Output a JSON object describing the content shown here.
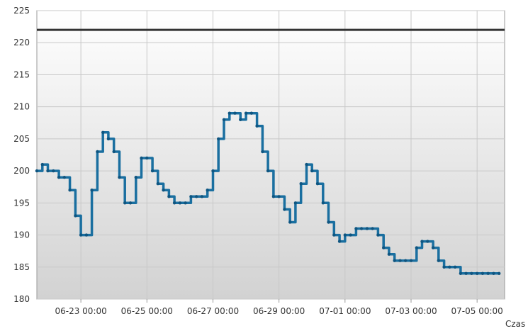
{
  "chart_data": {
    "type": "line",
    "xlabel": "Czas",
    "ylabel": "",
    "title": "",
    "ylim": [
      180,
      225
    ],
    "yticks": [
      180,
      185,
      190,
      195,
      200,
      205,
      210,
      215,
      220,
      225
    ],
    "xlim": [
      "2024-06-21 16:00",
      "2024-07-05 20:00"
    ],
    "xticks": [
      "06-23 00:00",
      "06-25 00:00",
      "06-27 00:00",
      "06-29 00:00",
      "07-01 00:00",
      "07-03 00:00",
      "07-05 00:00"
    ],
    "grid": true,
    "reference_line": 222,
    "colors": {
      "series": "#1a6fa0",
      "reference": "#333333",
      "grid": "#c8c8c8",
      "bg_top": "#ffffff",
      "bg_bottom": "#d2d2d2"
    },
    "series": [
      {
        "x": [
          "2024-06-21 16:00",
          "2024-06-21 20:00",
          "2024-06-22 00:00",
          "2024-06-22 04:00",
          "2024-06-22 08:00",
          "2024-06-22 12:00",
          "2024-06-22 16:00",
          "2024-06-22 20:00",
          "2024-06-23 00:00",
          "2024-06-23 04:00",
          "2024-06-23 08:00",
          "2024-06-23 12:00",
          "2024-06-23 16:00",
          "2024-06-23 20:00",
          "2024-06-24 00:00",
          "2024-06-24 04:00",
          "2024-06-24 08:00",
          "2024-06-24 12:00",
          "2024-06-24 16:00",
          "2024-06-24 20:00",
          "2024-06-25 00:00",
          "2024-06-25 04:00",
          "2024-06-25 08:00",
          "2024-06-25 12:00",
          "2024-06-25 16:00",
          "2024-06-25 20:00",
          "2024-06-26 00:00",
          "2024-06-26 04:00",
          "2024-06-26 08:00",
          "2024-06-26 12:00",
          "2024-06-26 16:00",
          "2024-06-26 20:00",
          "2024-06-27 00:00",
          "2024-06-27 04:00",
          "2024-06-27 08:00",
          "2024-06-27 12:00",
          "2024-06-27 16:00",
          "2024-06-27 20:00",
          "2024-06-28 00:00",
          "2024-06-28 04:00",
          "2024-06-28 08:00",
          "2024-06-28 12:00",
          "2024-06-28 16:00",
          "2024-06-28 20:00",
          "2024-06-29 00:00",
          "2024-06-29 04:00",
          "2024-06-29 08:00",
          "2024-06-29 12:00",
          "2024-06-29 16:00",
          "2024-06-29 20:00",
          "2024-06-30 00:00",
          "2024-06-30 04:00",
          "2024-06-30 08:00",
          "2024-06-30 12:00",
          "2024-06-30 16:00",
          "2024-06-30 20:00",
          "2024-07-01 00:00",
          "2024-07-01 04:00",
          "2024-07-01 08:00",
          "2024-07-01 12:00",
          "2024-07-01 16:00",
          "2024-07-01 20:00",
          "2024-07-02 00:00",
          "2024-07-02 04:00",
          "2024-07-02 08:00",
          "2024-07-02 12:00",
          "2024-07-02 16:00",
          "2024-07-02 20:00",
          "2024-07-03 00:00",
          "2024-07-03 04:00",
          "2024-07-03 08:00",
          "2024-07-03 12:00",
          "2024-07-03 16:00",
          "2024-07-03 20:00",
          "2024-07-04 00:00",
          "2024-07-04 04:00",
          "2024-07-04 08:00",
          "2024-07-04 12:00",
          "2024-07-04 16:00",
          "2024-07-04 20:00",
          "2024-07-05 00:00",
          "2024-07-05 04:00",
          "2024-07-05 08:00",
          "2024-07-05 12:00",
          "2024-07-05 16:00"
        ],
        "values": [
          200,
          201,
          200,
          200,
          199,
          199,
          197,
          193,
          190,
          190,
          197,
          203,
          206,
          205,
          203,
          199,
          195,
          195,
          199,
          202,
          202,
          200,
          198,
          197,
          196,
          195,
          195,
          195,
          196,
          196,
          196,
          197,
          200,
          205,
          208,
          209,
          209,
          208,
          209,
          209,
          207,
          203,
          200,
          196,
          196,
          194,
          192,
          195,
          198,
          201,
          200,
          198,
          195,
          192,
          190,
          189,
          190,
          190,
          191,
          191,
          191,
          191,
          190,
          188,
          187,
          186,
          186,
          186,
          186,
          188,
          189,
          189,
          188,
          186,
          185,
          185,
          185,
          184,
          184,
          184,
          184,
          184,
          184,
          184,
          184
        ]
      }
    ]
  }
}
